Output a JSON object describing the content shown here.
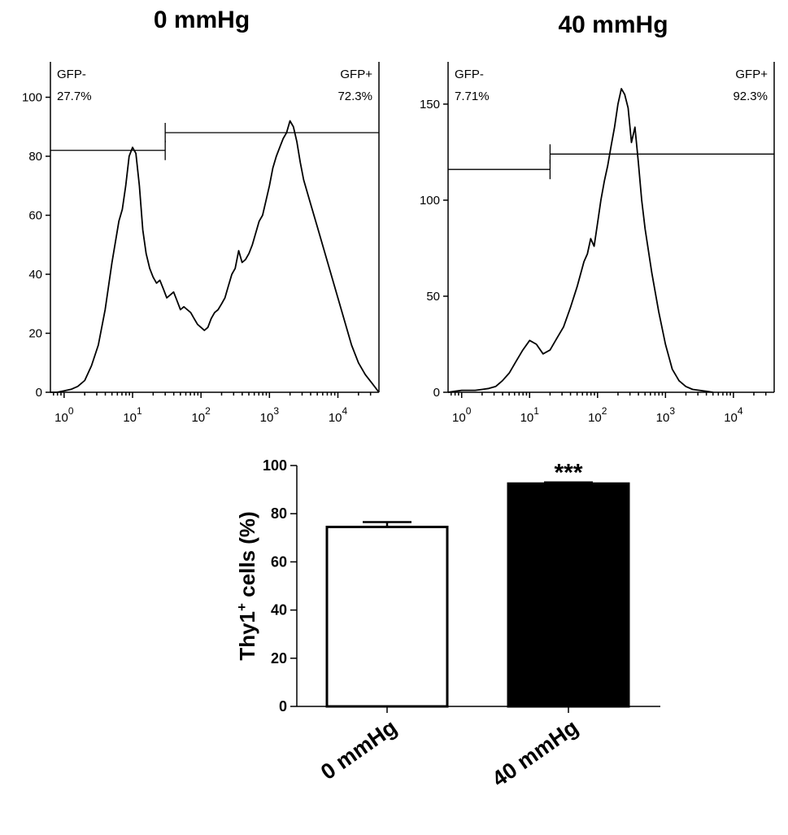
{
  "chart_data": [
    {
      "type": "area",
      "title": "0 mmHg",
      "xlim_log10": [
        -0.2,
        4.6
      ],
      "ylim": [
        0,
        112
      ],
      "x_tick_labels": [
        {
          "base": "10",
          "exp": "0",
          "value": 1
        },
        {
          "base": "10",
          "exp": "1",
          "value": 10
        },
        {
          "base": "10",
          "exp": "2",
          "value": 100
        },
        {
          "base": "10",
          "exp": "3",
          "value": 1000
        },
        {
          "base": "10",
          "exp": "4",
          "value": 10000
        }
      ],
      "y_ticks": [
        0,
        20,
        40,
        60,
        80,
        100
      ],
      "gates": [
        {
          "name": "GFP-",
          "percent": "27.7%",
          "x_start": 0.63,
          "x_end": 30,
          "y": 82
        },
        {
          "name": "GFP+",
          "percent": "72.3%",
          "x_start": 30,
          "x_end": 39811,
          "y": 88
        }
      ],
      "histogram": {
        "x": [
          0.63,
          0.79,
          1.0,
          1.26,
          1.58,
          2.0,
          2.51,
          3.16,
          3.98,
          5.01,
          6.31,
          7.08,
          7.94,
          8.91,
          10.0,
          11.2,
          12.6,
          14.1,
          15.8,
          17.8,
          20.0,
          22.4,
          25.1,
          28.2,
          31.6,
          35.5,
          39.8,
          44.7,
          50.1,
          56.2,
          63.1,
          70.8,
          79.4,
          89.1,
          100,
          112,
          126,
          141,
          158,
          178,
          200,
          224,
          251,
          282,
          316,
          355,
          398,
          447,
          501,
          562,
          631,
          708,
          794,
          891,
          1000,
          1122,
          1259,
          1413,
          1585,
          1778,
          1995,
          2239,
          2512,
          2818,
          3162,
          3981,
          5012,
          6310,
          7943,
          10000,
          12589,
          15849,
          19953,
          25119,
          31623,
          39811
        ],
        "y": [
          0,
          0,
          0.5,
          1,
          2,
          4,
          9,
          16,
          28,
          44,
          58,
          62,
          70,
          80,
          83,
          81,
          70,
          55,
          47,
          42,
          39,
          37,
          38,
          35,
          32,
          33,
          34,
          31,
          28,
          29,
          28,
          27,
          25,
          23,
          22,
          21,
          22,
          25,
          27,
          28,
          30,
          32,
          36,
          40,
          42,
          48,
          44,
          45,
          47,
          50,
          54,
          58,
          60,
          65,
          70,
          76,
          80,
          83,
          86,
          88,
          92,
          90,
          85,
          78,
          72,
          64,
          56,
          48,
          40,
          32,
          24,
          16,
          10,
          6,
          3,
          0
        ]
      }
    },
    {
      "type": "area",
      "title": "40 mmHg",
      "xlim_log10": [
        -0.2,
        4.6
      ],
      "ylim": [
        0,
        172
      ],
      "x_tick_labels": [
        {
          "base": "10",
          "exp": "0",
          "value": 1
        },
        {
          "base": "10",
          "exp": "1",
          "value": 10
        },
        {
          "base": "10",
          "exp": "2",
          "value": 100
        },
        {
          "base": "10",
          "exp": "3",
          "value": 1000
        },
        {
          "base": "10",
          "exp": "4",
          "value": 10000
        }
      ],
      "y_ticks": [
        0,
        50,
        100,
        150
      ],
      "gates": [
        {
          "name": "GFP-",
          "percent": "7.71%",
          "x_start": 0.63,
          "x_end": 20,
          "y": 116
        },
        {
          "name": "GFP+",
          "percent": "92.3%",
          "x_start": 20,
          "x_end": 39811,
          "y": 124
        }
      ],
      "histogram": {
        "x": [
          0.63,
          0.79,
          1.0,
          1.26,
          1.58,
          2.0,
          2.51,
          3.16,
          3.98,
          5.01,
          6.31,
          7.94,
          10.0,
          12.6,
          15.8,
          20.0,
          25.1,
          31.6,
          39.8,
          50.1,
          63.1,
          70.8,
          79.4,
          89.1,
          100,
          112,
          126,
          141,
          158,
          178,
          200,
          224,
          251,
          282,
          316,
          355,
          398,
          447,
          501,
          631,
          794,
          1000,
          1259,
          1585,
          1995,
          2512,
          3162,
          3981,
          5012
        ],
        "y": [
          0,
          0.5,
          1,
          1,
          1,
          1.5,
          2,
          3,
          6,
          10,
          16,
          22,
          27,
          25,
          20,
          22,
          28,
          34,
          44,
          55,
          68,
          72,
          80,
          76,
          88,
          100,
          110,
          118,
          128,
          138,
          150,
          158,
          155,
          148,
          130,
          138,
          120,
          100,
          85,
          62,
          42,
          25,
          12,
          6,
          3,
          1.5,
          1,
          0.5,
          0
        ]
      }
    },
    {
      "type": "bar",
      "categories": [
        "0 mmHg",
        "40 mmHg"
      ],
      "values": [
        74.5,
        92.5
      ],
      "errors": [
        2,
        0.5
      ],
      "bar_colors": [
        "#ffffff",
        "#000000"
      ],
      "ylabel_main": "Thy1",
      "ylabel_sup": "+",
      "ylabel_rest": " cells (%)",
      "ylim": [
        0,
        100
      ],
      "y_ticks": [
        0,
        20,
        40,
        60,
        80,
        100
      ],
      "annotation": "***"
    }
  ]
}
